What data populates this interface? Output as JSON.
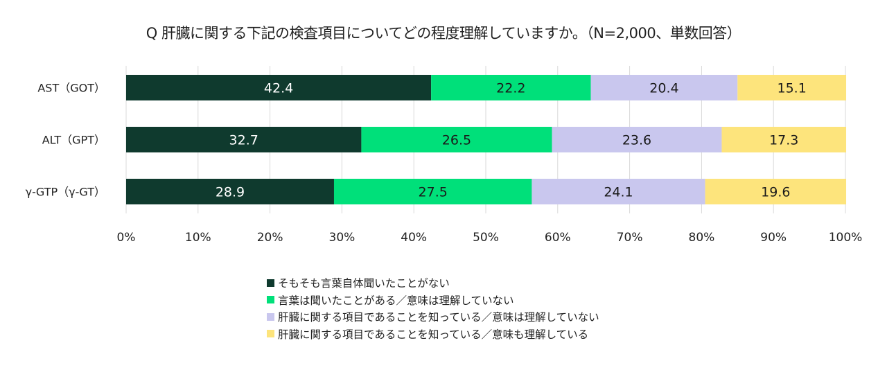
{
  "chart_data": {
    "type": "bar",
    "orientation": "horizontal",
    "stacked": true,
    "title": "Q 肝臓に関する下記の検査項目についてどの程度理解していますか。（N=2,000、単数回答）",
    "categories": [
      "AST（GOT）",
      "ALT（GPT）",
      "γ-GTP（γ-GT）"
    ],
    "series": [
      {
        "name": "そもそも言葉自体聞いたことがない",
        "color": "#0f3a2e",
        "label_color": "#ffffff",
        "values": [
          42.4,
          32.7,
          28.9
        ]
      },
      {
        "name": "言葉は聞いたことがある／意味は理解していない",
        "color": "#00e07a",
        "label_color": "#1a1a1a",
        "values": [
          22.2,
          26.5,
          27.5
        ]
      },
      {
        "name": "肝臓に関する項目であることを知っている／意味は理解していない",
        "color": "#c9c7ee",
        "label_color": "#1a1a1a",
        "values": [
          20.4,
          23.6,
          24.1
        ]
      },
      {
        "name": "肝臓に関する項目であることを知っている／意味も理解している",
        "color": "#fde47c",
        "label_color": "#1a1a1a",
        "values": [
          15.1,
          17.3,
          19.6
        ]
      }
    ],
    "xlim": [
      0,
      100
    ],
    "x_ticks": [
      "0%",
      "10%",
      "20%",
      "30%",
      "40%",
      "50%",
      "60%",
      "70%",
      "80%",
      "90%",
      "100%"
    ],
    "grid": true,
    "legend_position": "bottom"
  }
}
